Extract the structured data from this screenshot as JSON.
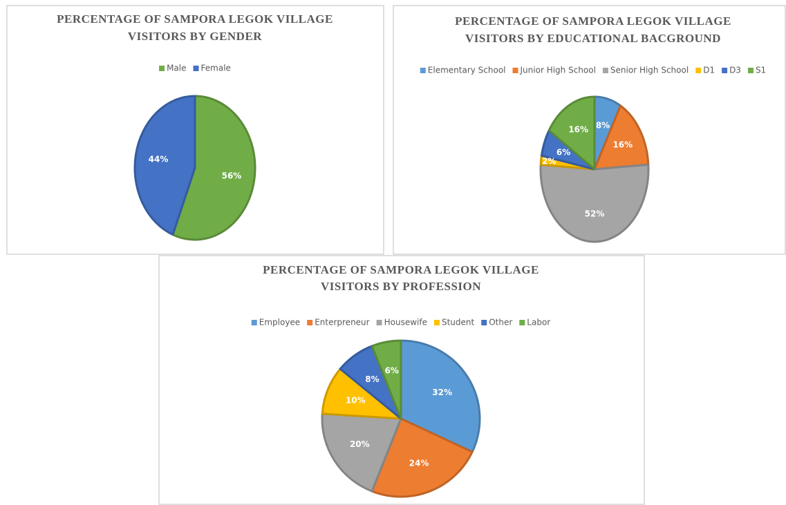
{
  "chart_data": [
    {
      "type": "pie",
      "title": [
        "PERCENTAGE  OF SAMPORA LEGOK  VILLAGE",
        "VISITORS BY GENDER"
      ],
      "categories": [
        "Male",
        "Female"
      ],
      "values": [
        56,
        44
      ],
      "value_labels": [
        "56%",
        "44%"
      ],
      "colors": [
        "#70ad47",
        "#4472c4"
      ]
    },
    {
      "type": "pie",
      "title": [
        "PERCENTAGE OF SAMPORA LEGOK VILLAGE",
        "VISITORS BY EDUCATIONAL BACGROUND"
      ],
      "categories": [
        "Elementary School",
        "Junior High School",
        "Senior High School",
        "D1",
        "D3",
        "S1"
      ],
      "values": [
        8,
        16,
        52,
        2,
        6,
        16
      ],
      "value_labels": [
        "8%",
        "16%",
        "52%",
        "2%",
        "6%",
        "16%"
      ],
      "colors": [
        "#5b9bd5",
        "#ed7d31",
        "#a5a5a5",
        "#ffc000",
        "#4472c4",
        "#70ad47"
      ]
    },
    {
      "type": "pie",
      "title": [
        "PERCENTAGE OF SAMPORA LEGOK VILLAGE",
        "VISITORS BY PROFESSION"
      ],
      "categories": [
        "Employee",
        "Enterpreneur",
        "Housewife",
        "Student",
        "Other",
        "Labor"
      ],
      "values": [
        32,
        24,
        20,
        10,
        8,
        6
      ],
      "value_labels": [
        "32%",
        "24%",
        "20%",
        "10%",
        "8%",
        "6%"
      ],
      "colors": [
        "#5b9bd5",
        "#ed7d31",
        "#a5a5a5",
        "#ffc000",
        "#4472c4",
        "#70ad47"
      ]
    }
  ]
}
